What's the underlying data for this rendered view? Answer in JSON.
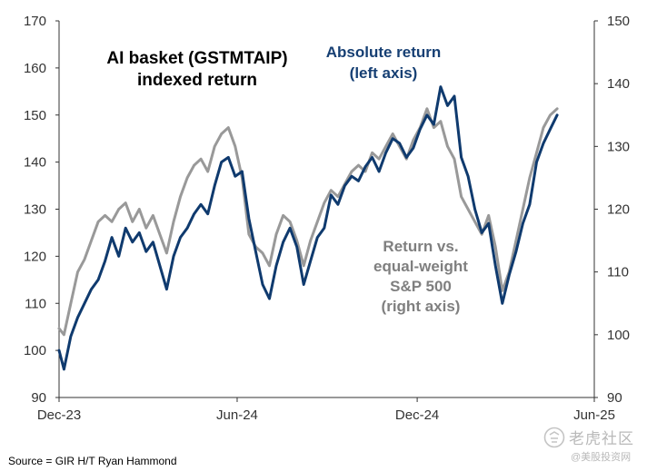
{
  "chart_data": {
    "type": "line",
    "title": "AI basket (GSTMTAIP)",
    "subtitle": "indexed return",
    "x_ticks": [
      "Dec-23",
      "Jun-24",
      "Dec-24",
      "Jun-25"
    ],
    "x_range": [
      "2023-12-31",
      "2025-06-30"
    ],
    "ylim_left": [
      90,
      170
    ],
    "ylim_right": [
      90,
      150
    ],
    "left_ticks": [
      "90",
      "100",
      "110",
      "120",
      "130",
      "140",
      "150",
      "160",
      "170"
    ],
    "right_ticks": [
      "90",
      "100",
      "110",
      "120",
      "130",
      "140",
      "150"
    ],
    "grid": false,
    "colors": {
      "absolute": "#0f3a6e",
      "relative": "#999999",
      "axis": "#333333"
    },
    "annotations": {
      "absolute": [
        "Absolute return",
        "(left axis)"
      ],
      "relative": [
        "Return vs.",
        "equal-weight",
        "S&P 500",
        "(right axis)"
      ]
    },
    "series": [
      {
        "key": "absolute",
        "axis": "left",
        "x": [
          "2023-12-31",
          "2024-01-05",
          "2024-01-12",
          "2024-01-19",
          "2024-01-26",
          "2024-02-02",
          "2024-02-09",
          "2024-02-16",
          "2024-02-23",
          "2024-03-01",
          "2024-03-08",
          "2024-03-15",
          "2024-03-22",
          "2024-03-29",
          "2024-04-05",
          "2024-04-12",
          "2024-04-19",
          "2024-04-26",
          "2024-05-03",
          "2024-05-10",
          "2024-05-17",
          "2024-05-24",
          "2024-05-31",
          "2024-06-07",
          "2024-06-14",
          "2024-06-21",
          "2024-06-28",
          "2024-07-05",
          "2024-07-12",
          "2024-07-19",
          "2024-07-26",
          "2024-08-02",
          "2024-08-09",
          "2024-08-16",
          "2024-08-23",
          "2024-08-30",
          "2024-09-06",
          "2024-09-13",
          "2024-09-20",
          "2024-09-27",
          "2024-10-04",
          "2024-10-11",
          "2024-10-18",
          "2024-10-25",
          "2024-11-01",
          "2024-11-08",
          "2024-11-15",
          "2024-11-22",
          "2024-11-29",
          "2024-12-06",
          "2024-12-13",
          "2024-12-20",
          "2024-12-27",
          "2025-01-03",
          "2025-01-10",
          "2025-01-17",
          "2025-01-24",
          "2025-01-31",
          "2025-02-07",
          "2025-02-14",
          "2025-02-21",
          "2025-02-28",
          "2025-03-07",
          "2025-03-14",
          "2025-03-21",
          "2025-03-28",
          "2025-04-04",
          "2025-04-11",
          "2025-04-18",
          "2025-04-25",
          "2025-05-02",
          "2025-05-09",
          "2025-05-16",
          "2025-05-23"
        ],
        "values": [
          100,
          96,
          103,
          107,
          110,
          113,
          115,
          119,
          124,
          120,
          126,
          123,
          125,
          121,
          123,
          118,
          113,
          120,
          124,
          126,
          129,
          131,
          129,
          135,
          140,
          141,
          137,
          138,
          128,
          121,
          114,
          111,
          118,
          123,
          126,
          122,
          114,
          119,
          124,
          126,
          133,
          131,
          135,
          137,
          136,
          139,
          141,
          138,
          142,
          145,
          144,
          141,
          143,
          147,
          150,
          148,
          156,
          152,
          154,
          141,
          137,
          130,
          125,
          127,
          118,
          110,
          116,
          121,
          127,
          131,
          140,
          144,
          147,
          150
        ]
      },
      {
        "key": "relative",
        "axis": "right",
        "x": [
          "2023-12-31",
          "2024-01-05",
          "2024-01-12",
          "2024-01-19",
          "2024-01-26",
          "2024-02-02",
          "2024-02-09",
          "2024-02-16",
          "2024-02-23",
          "2024-03-01",
          "2024-03-08",
          "2024-03-15",
          "2024-03-22",
          "2024-03-29",
          "2024-04-05",
          "2024-04-12",
          "2024-04-19",
          "2024-04-26",
          "2024-05-03",
          "2024-05-10",
          "2024-05-17",
          "2024-05-24",
          "2024-05-31",
          "2024-06-07",
          "2024-06-14",
          "2024-06-21",
          "2024-06-28",
          "2024-07-05",
          "2024-07-12",
          "2024-07-19",
          "2024-07-26",
          "2024-08-02",
          "2024-08-09",
          "2024-08-16",
          "2024-08-23",
          "2024-08-30",
          "2024-09-06",
          "2024-09-13",
          "2024-09-20",
          "2024-09-27",
          "2024-10-04",
          "2024-10-11",
          "2024-10-18",
          "2024-10-25",
          "2024-11-01",
          "2024-11-08",
          "2024-11-15",
          "2024-11-22",
          "2024-11-29",
          "2024-12-06",
          "2024-12-13",
          "2024-12-20",
          "2024-12-27",
          "2025-01-03",
          "2025-01-10",
          "2025-01-17",
          "2025-01-24",
          "2025-01-31",
          "2025-02-07",
          "2025-02-14",
          "2025-02-21",
          "2025-02-28",
          "2025-03-07",
          "2025-03-14",
          "2025-03-21",
          "2025-03-28",
          "2025-04-04",
          "2025-04-11",
          "2025-04-18",
          "2025-04-25",
          "2025-05-02",
          "2025-05-09",
          "2025-05-16",
          "2025-05-23"
        ],
        "values": [
          101,
          100,
          105,
          110,
          112,
          115,
          118,
          119,
          118,
          120,
          121,
          118,
          120,
          117,
          119,
          116,
          113,
          118,
          122,
          125,
          127,
          128,
          126,
          130,
          132,
          133,
          130,
          125,
          116,
          114,
          113,
          111,
          116,
          119,
          118,
          115,
          111,
          115,
          118,
          121,
          123,
          122,
          124,
          126,
          127,
          126,
          129,
          128,
          130,
          132,
          130,
          128,
          131,
          133,
          136,
          133,
          134,
          130,
          128,
          122,
          120,
          118,
          116,
          119,
          114,
          107,
          110,
          115,
          120,
          125,
          129,
          133,
          135,
          136
        ]
      }
    ]
  },
  "source": "Source = GIR H/T Ryan Hammond",
  "watermark": {
    "brand": "老虎社区",
    "sub": "@美股投资网"
  }
}
